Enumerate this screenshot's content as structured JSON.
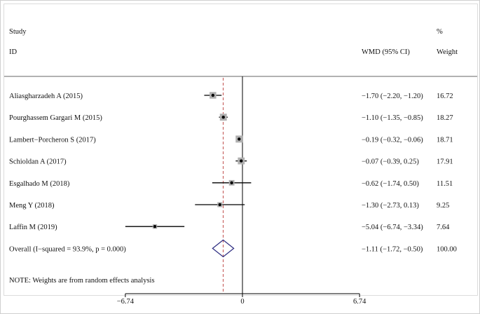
{
  "headers": {
    "study_line1": "Study",
    "study_line2": "ID",
    "effect": "WMD (95% CI)",
    "weight_line1": "%",
    "weight_line2": "Weight"
  },
  "note": "NOTE: Weights are from random effects analysis",
  "colors": {
    "ci_line": "#000000",
    "square": "#b0b0b0",
    "diamond": "#2b2a80",
    "overall_line": "#c0504d"
  },
  "chart_data": {
    "type": "forest",
    "x_ticks": [
      {
        "value": -6.74,
        "label": "−6.74"
      },
      {
        "value": 0,
        "label": "0"
      },
      {
        "value": 6.74,
        "label": "6.74"
      }
    ],
    "xlim": [
      -6.74,
      6.74
    ],
    "null_line": 0,
    "studies": [
      {
        "id": "Aliasgharzadeh A (2015)",
        "wmd": -1.7,
        "lo": -2.2,
        "hi": -1.2,
        "ci_text": "−1.70 (−2.20, −1.20)",
        "weight": "16.72"
      },
      {
        "id": "Pourghassem Gargari M (2015)",
        "wmd": -1.1,
        "lo": -1.35,
        "hi": -0.85,
        "ci_text": "−1.10 (−1.35, −0.85)",
        "weight": "18.27"
      },
      {
        "id": "Lambert−Porcheron S (2017)",
        "wmd": -0.19,
        "lo": -0.32,
        "hi": -0.06,
        "ci_text": "−0.19 (−0.32, −0.06)",
        "weight": "18.71"
      },
      {
        "id": "Schioldan A (2017)",
        "wmd": -0.07,
        "lo": -0.39,
        "hi": 0.25,
        "ci_text": "−0.07 (−0.39, 0.25)",
        "weight": "17.91"
      },
      {
        "id": "Esgalhado M (2018)",
        "wmd": -0.62,
        "lo": -1.74,
        "hi": 0.5,
        "ci_text": "−0.62 (−1.74, 0.50)",
        "weight": "11.51"
      },
      {
        "id": "Meng Y (2018)",
        "wmd": -1.3,
        "lo": -2.73,
        "hi": 0.13,
        "ci_text": "−1.30 (−2.73, 0.13)",
        "weight": "9.25"
      },
      {
        "id": "Laffin M (2019)",
        "wmd": -5.04,
        "lo": -6.74,
        "hi": -3.34,
        "ci_text": "−5.04 (−6.74, −3.34)",
        "weight": "7.64"
      }
    ],
    "overall": {
      "id": "Overall  (I−squared = 93.9%, p = 0.000)",
      "wmd": -1.11,
      "lo": -1.72,
      "hi": -0.5,
      "ci_text": "−1.11 (−1.72, −0.50)",
      "weight": "100.00"
    }
  }
}
